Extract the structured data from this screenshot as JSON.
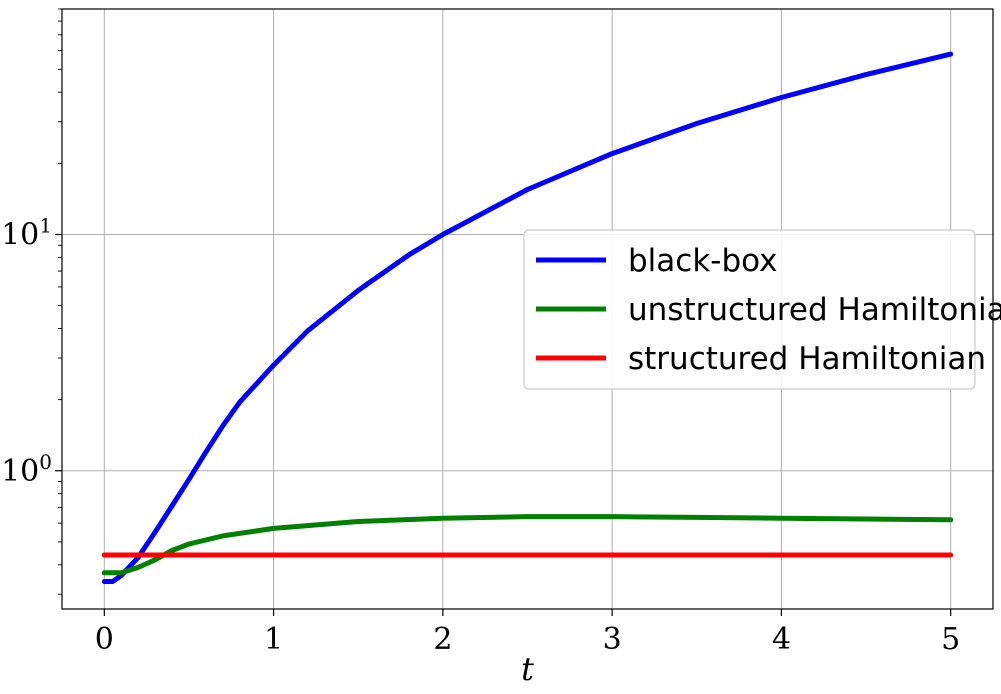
{
  "chart_data": {
    "type": "line",
    "xlabel": "t",
    "ylabel": "",
    "yscale": "log",
    "xlim": [
      -0.25,
      5.25
    ],
    "ylim": [
      0.26,
      90
    ],
    "grid": true,
    "legend_position": "center-right",
    "x_ticks": [
      {
        "value": 0,
        "label": "0"
      },
      {
        "value": 1,
        "label": "1"
      },
      {
        "value": 2,
        "label": "2"
      },
      {
        "value": 3,
        "label": "3"
      },
      {
        "value": 4,
        "label": "4"
      },
      {
        "value": 5,
        "label": "5"
      }
    ],
    "y_ticks": [
      {
        "value": 1,
        "base": "10",
        "exp": "0"
      },
      {
        "value": 10,
        "base": "10",
        "exp": "1"
      }
    ],
    "series": [
      {
        "name": "black-box",
        "color": "#0000ff",
        "x": [
          0,
          0.05,
          0.1,
          0.2,
          0.3,
          0.4,
          0.5,
          0.6,
          0.7,
          0.8,
          1.0,
          1.2,
          1.5,
          1.8,
          2.0,
          2.5,
          3.0,
          3.5,
          4.0,
          4.5,
          5.0
        ],
        "y": [
          0.34,
          0.34,
          0.36,
          0.43,
          0.55,
          0.71,
          0.92,
          1.2,
          1.55,
          1.95,
          2.8,
          3.9,
          5.8,
          8.2,
          10,
          15.5,
          22,
          29.5,
          38,
          47.5,
          58
        ]
      },
      {
        "name": "unstructured Hamiltonian",
        "color": "#008000",
        "x": [
          0,
          0.1,
          0.2,
          0.3,
          0.4,
          0.5,
          0.7,
          1.0,
          1.5,
          2.0,
          2.5,
          3.0,
          3.5,
          4.0,
          4.5,
          5.0
        ],
        "y": [
          0.37,
          0.37,
          0.39,
          0.42,
          0.46,
          0.49,
          0.53,
          0.57,
          0.61,
          0.63,
          0.64,
          0.64,
          0.635,
          0.63,
          0.625,
          0.62
        ]
      },
      {
        "name": "structured Hamiltonian",
        "color": "#ff0000",
        "x": [
          0,
          5
        ],
        "y": [
          0.44,
          0.44
        ]
      }
    ]
  }
}
